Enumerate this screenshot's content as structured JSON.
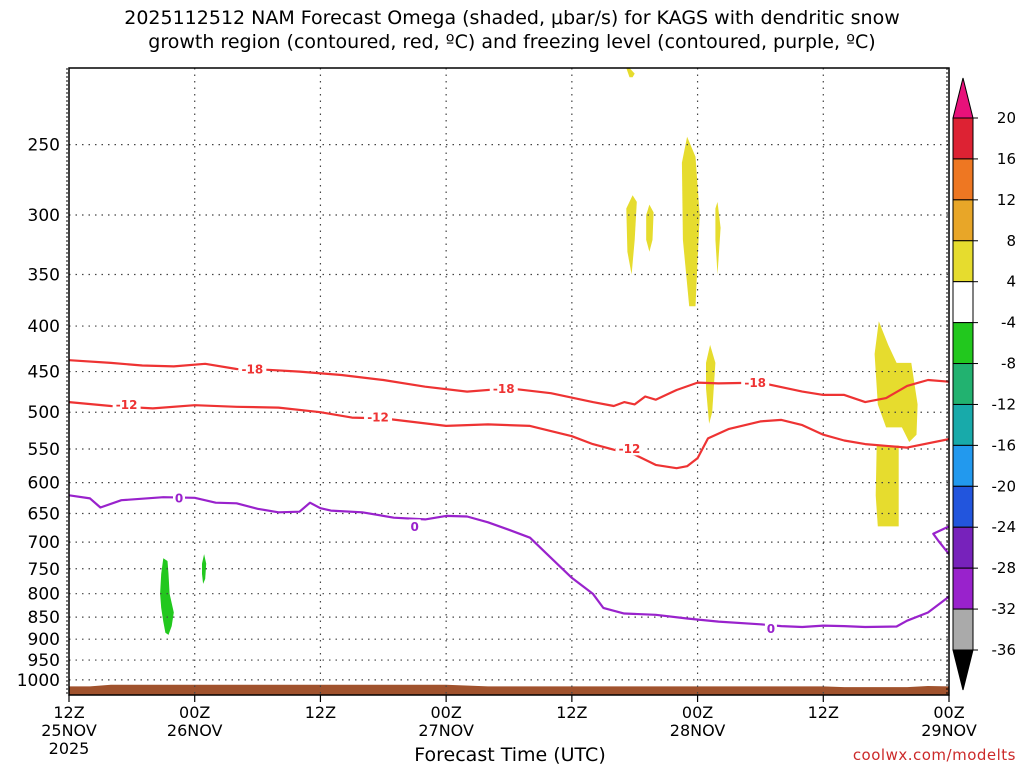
{
  "title": "2025112512 NAM Forecast Omega (shaded, μbar/s) for KAGS with dendritic snow\ngrowth region (contoured, red, ºC) and freezing level (contoured, purple, ºC)",
  "credit": "coolwx.com/modelts",
  "chart_data": {
    "type": "contour-time-section",
    "xlabel": "Forecast Time (UTC)",
    "ylabel": "",
    "y_scale": "log-pressure",
    "ylim_hpa": [
      1040,
      205
    ],
    "xlim_hours": [
      0,
      84
    ],
    "y_ticks": [
      250,
      300,
      350,
      400,
      450,
      500,
      550,
      600,
      650,
      700,
      750,
      800,
      850,
      900,
      950,
      1000
    ],
    "x_ticks": [
      {
        "hour": 0,
        "label": [
          "12Z",
          "25NOV",
          "2025"
        ]
      },
      {
        "hour": 12,
        "label": [
          "00Z",
          "26NOV"
        ]
      },
      {
        "hour": 24,
        "label": [
          "12Z"
        ]
      },
      {
        "hour": 36,
        "label": [
          "00Z",
          "27NOV"
        ]
      },
      {
        "hour": 48,
        "label": [
          "12Z"
        ]
      },
      {
        "hour": 60,
        "label": [
          "00Z",
          "28NOV"
        ]
      },
      {
        "hour": 72,
        "label": [
          "12Z"
        ]
      },
      {
        "hour": 84,
        "label": [
          "00Z",
          "29NOV"
        ]
      }
    ],
    "grid": true,
    "contours": [
      {
        "value": -18,
        "color": "#ee3333",
        "labels": [
          {
            "text": "-18",
            "hour": 17.5,
            "p": 447
          },
          {
            "text": "-18",
            "hour": 41.5,
            "p": 470
          },
          {
            "text": "-18",
            "hour": 65.5,
            "p": 463
          }
        ],
        "points": [
          [
            0,
            437
          ],
          [
            4,
            440
          ],
          [
            7,
            443
          ],
          [
            10,
            444
          ],
          [
            13,
            441
          ],
          [
            16,
            447
          ],
          [
            19,
            448
          ],
          [
            22,
            450
          ],
          [
            26,
            454
          ],
          [
            30,
            460
          ],
          [
            34,
            468
          ],
          [
            38,
            474
          ],
          [
            42,
            470
          ],
          [
            46,
            476
          ],
          [
            50,
            487
          ],
          [
            52,
            492
          ],
          [
            53,
            487
          ],
          [
            54,
            490
          ],
          [
            55,
            480
          ],
          [
            56,
            484
          ],
          [
            57,
            478
          ],
          [
            58,
            472
          ],
          [
            60,
            463
          ],
          [
            62,
            464
          ],
          [
            66,
            463
          ],
          [
            70,
            474
          ],
          [
            72,
            478
          ],
          [
            74,
            478
          ],
          [
            76,
            487
          ],
          [
            78,
            482
          ],
          [
            80,
            467
          ],
          [
            82,
            460
          ],
          [
            84,
            462
          ]
        ]
      },
      {
        "value": -12,
        "color": "#ee3333",
        "labels": [
          {
            "text": "-12",
            "hour": 5.5,
            "p": 490
          },
          {
            "text": "-12",
            "hour": 29.5,
            "p": 506
          },
          {
            "text": "-12",
            "hour": 53.5,
            "p": 549
          }
        ],
        "points": [
          [
            0,
            487
          ],
          [
            4,
            492
          ],
          [
            8,
            495
          ],
          [
            12,
            491
          ],
          [
            16,
            493
          ],
          [
            20,
            494
          ],
          [
            24,
            500
          ],
          [
            27,
            507
          ],
          [
            30,
            508
          ],
          [
            33,
            513
          ],
          [
            36,
            518
          ],
          [
            40,
            516
          ],
          [
            44,
            518
          ],
          [
            46,
            525
          ],
          [
            48,
            532
          ],
          [
            50,
            543
          ],
          [
            52,
            551
          ],
          [
            54,
            558
          ],
          [
            56,
            573
          ],
          [
            58,
            578
          ],
          [
            59,
            575
          ],
          [
            60,
            563
          ],
          [
            61,
            535
          ],
          [
            63,
            522
          ],
          [
            66,
            512
          ],
          [
            68,
            510
          ],
          [
            70,
            517
          ],
          [
            72,
            530
          ],
          [
            74,
            538
          ],
          [
            76,
            543
          ],
          [
            80,
            548
          ],
          [
            84,
            536
          ]
        ]
      },
      {
        "value": 0,
        "color": "#9922cc",
        "labels": [
          {
            "text": "0",
            "hour": 10.5,
            "p": 624
          },
          {
            "text": "0",
            "hour": 33,
            "p": 672
          },
          {
            "text": "0",
            "hour": 67,
            "p": 875
          }
        ],
        "points": [
          [
            0,
            620
          ],
          [
            2,
            625
          ],
          [
            3,
            640
          ],
          [
            5,
            628
          ],
          [
            9,
            623
          ],
          [
            12,
            624
          ],
          [
            14,
            632
          ],
          [
            16,
            633
          ],
          [
            18,
            642
          ],
          [
            20,
            648
          ],
          [
            22,
            647
          ],
          [
            23,
            632
          ],
          [
            24,
            641
          ],
          [
            25,
            645
          ],
          [
            28,
            648
          ],
          [
            31,
            657
          ],
          [
            34,
            660
          ],
          [
            36,
            654
          ],
          [
            38,
            655
          ],
          [
            40,
            665
          ],
          [
            42,
            678
          ],
          [
            44,
            692
          ],
          [
            46,
            729
          ],
          [
            48,
            768
          ],
          [
            50,
            800
          ],
          [
            51,
            830
          ],
          [
            53,
            842
          ],
          [
            56,
            845
          ],
          [
            59,
            853
          ],
          [
            62,
            860
          ],
          [
            66,
            866
          ],
          [
            68,
            870
          ],
          [
            70,
            872
          ],
          [
            72,
            869
          ],
          [
            74,
            870
          ],
          [
            76,
            872
          ],
          [
            79,
            871
          ],
          [
            80,
            858
          ],
          [
            82,
            840
          ],
          [
            84,
            806
          ]
        ]
      },
      {
        "value": 0,
        "color": "#9922cc",
        "labels": [],
        "points": [
          [
            84,
            672
          ],
          [
            82.5,
            685
          ],
          [
            83,
            698
          ],
          [
            84,
            722
          ]
        ]
      }
    ],
    "omega_areas": [
      {
        "color": "#e6dc2e",
        "points": [
          [
            53.5,
            200
          ],
          [
            54,
            208
          ],
          [
            53.8,
            210
          ],
          [
            53.5,
            210
          ],
          [
            53.2,
            200
          ]
        ]
      },
      {
        "color": "#e6dc2e",
        "points": [
          [
            53.8,
            285
          ],
          [
            54.2,
            290
          ],
          [
            54.0,
            320
          ],
          [
            53.7,
            350
          ],
          [
            53.3,
            330
          ],
          [
            53.2,
            295
          ]
        ]
      },
      {
        "color": "#e6dc2e",
        "points": [
          [
            55.4,
            292
          ],
          [
            55.8,
            298
          ],
          [
            55.7,
            320
          ],
          [
            55.4,
            330
          ],
          [
            55.1,
            320
          ],
          [
            55.1,
            300
          ]
        ]
      },
      {
        "color": "#e6dc2e",
        "points": [
          [
            59.0,
            245
          ],
          [
            59.8,
            258
          ],
          [
            60.2,
            300
          ],
          [
            59.8,
            380
          ],
          [
            59.2,
            380
          ],
          [
            58.6,
            320
          ],
          [
            58.5,
            262
          ]
        ]
      },
      {
        "color": "#e6dc2e",
        "points": [
          [
            61.9,
            290
          ],
          [
            62.2,
            310
          ],
          [
            61.9,
            350
          ],
          [
            61.7,
            320
          ],
          [
            61.7,
            295
          ]
        ]
      },
      {
        "color": "#e6dc2e",
        "points": [
          [
            61.2,
            420
          ],
          [
            61.7,
            440
          ],
          [
            61.4,
            500
          ],
          [
            61.1,
            515
          ],
          [
            60.8,
            470
          ],
          [
            60.8,
            440
          ]
        ]
      },
      {
        "color": "#e6dc2e",
        "points": [
          [
            77.3,
            395
          ],
          [
            78.2,
            420
          ],
          [
            79.0,
            440
          ],
          [
            80.4,
            440
          ],
          [
            81.0,
            490
          ],
          [
            80.9,
            530
          ],
          [
            80.2,
            540
          ],
          [
            79.5,
            520
          ],
          [
            79.0,
            520
          ],
          [
            78.0,
            520
          ],
          [
            77.2,
            490
          ],
          [
            76.9,
            430
          ]
        ]
      },
      {
        "color": "#e6dc2e",
        "points": [
          [
            77.1,
            545
          ],
          [
            79.2,
            545
          ],
          [
            79.2,
            672
          ],
          [
            77.2,
            672
          ],
          [
            77.0,
            620
          ]
        ]
      },
      {
        "color": "#22c81e",
        "points": [
          [
            9.0,
            730
          ],
          [
            9.4,
            735
          ],
          [
            9.5,
            760
          ],
          [
            9.6,
            800
          ],
          [
            10.0,
            840
          ],
          [
            9.8,
            870
          ],
          [
            9.5,
            890
          ],
          [
            9.2,
            885
          ],
          [
            9.0,
            860
          ],
          [
            8.8,
            830
          ],
          [
            8.7,
            800
          ],
          [
            8.8,
            760
          ]
        ]
      },
      {
        "color": "#22c81e",
        "points": [
          [
            12.9,
            722
          ],
          [
            13.1,
            740
          ],
          [
            13.0,
            770
          ],
          [
            12.8,
            780
          ],
          [
            12.7,
            760
          ],
          [
            12.7,
            740
          ]
        ]
      }
    ],
    "terrain": {
      "color": "#a0522d",
      "top_hpa": [
        [
          0,
          1017
        ],
        [
          2,
          1017
        ],
        [
          4,
          1013
        ],
        [
          8,
          1013
        ],
        [
          36,
          1013
        ],
        [
          40,
          1017
        ],
        [
          72,
          1017
        ],
        [
          74,
          1019
        ],
        [
          80,
          1019
        ],
        [
          82,
          1016
        ],
        [
          84,
          1017
        ]
      ]
    },
    "colorbar": {
      "levels": [
        "20",
        "16",
        "12",
        "8",
        "4",
        "-4",
        "-8",
        "-12",
        "-16",
        "-20",
        "-24",
        "-28",
        "-32",
        "-36"
      ],
      "colors": [
        "#dd2233",
        "#ee7722",
        "#e8a628",
        "#e6dc2e",
        "#ffffff",
        "#22c81e",
        "#22b270",
        "#18aaaa",
        "#2299ee",
        "#2255dd",
        "#7722bb",
        "#9922cc",
        "#aaaaaa"
      ],
      "top_arrow_color": "#e8117a",
      "bottom_arrow_color": "#000000"
    }
  }
}
